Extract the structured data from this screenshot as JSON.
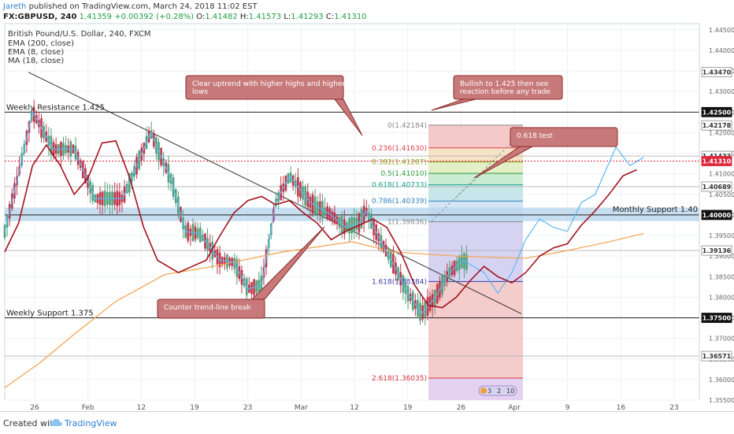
{
  "header": {
    "author": "Jareth",
    "published_text": "published on TradingView.com, March 24, 2018 11:02 EST",
    "symbol": "FX:GBPUSD, 240",
    "last": "1.41359",
    "change": "+0.00392 (+0.28%)",
    "o_label": "O:",
    "o_value": "1.41482",
    "h_label": "H:",
    "h_value": "1.41573",
    "l_label": "L:",
    "l_value": "1.41293",
    "c_label": "C:",
    "c_value": "1.41310"
  },
  "legend": {
    "instrument": "British Pound/U.S. Dollar, 240, FXCM",
    "ind1": "EMA (200, close)",
    "ind2": "EMA (8, close)",
    "ind3": "MA (18, close)"
  },
  "footer": {
    "created_with": "Created with",
    "brand": "TradingView"
  },
  "chart_data": {
    "type": "candlestick",
    "symbol": "GBPUSD",
    "timeframe": "240",
    "ylim": [
      1.355,
      1.4465
    ],
    "y_ticks": [
      1.445,
      1.44,
      1.435,
      1.43,
      1.425,
      1.42,
      1.415,
      1.41,
      1.405,
      1.4,
      1.395,
      1.39,
      1.385,
      1.38,
      1.375,
      1.37,
      1.365,
      1.36,
      1.355
    ],
    "x_ticks": [
      "26",
      "Feb",
      "12",
      "19",
      "23",
      "Mar",
      "12",
      "19",
      "26",
      "Apr",
      "9",
      "16",
      "23"
    ],
    "price_badges": [
      {
        "value": "1.43470",
        "price": 1.4347,
        "bg": "#ffffff",
        "fg": "#333333"
      },
      {
        "value": "1.42500",
        "price": 1.425,
        "bg": "#111111",
        "fg": "#ffffff"
      },
      {
        "value": "1.42178",
        "price": 1.42178,
        "bg": "#ffffff",
        "fg": "#333333"
      },
      {
        "value": "1.41433",
        "price": 1.41433,
        "bg": "#ffffff",
        "fg": "#333333"
      },
      {
        "value": "1.41310",
        "price": 1.4131,
        "bg": "#e0263a",
        "fg": "#ffffff"
      },
      {
        "value": "1.40689",
        "price": 1.40689,
        "bg": "#ffffff",
        "fg": "#333333"
      },
      {
        "value": "1.40000",
        "price": 1.4,
        "bg": "#111111",
        "fg": "#ffffff"
      },
      {
        "value": "1.39136",
        "price": 1.39136,
        "bg": "#ffffff",
        "fg": "#333333"
      },
      {
        "value": "1.37500",
        "price": 1.375,
        "bg": "#111111",
        "fg": "#ffffff"
      },
      {
        "value": "1.36571",
        "price": 1.36571,
        "bg": "#ffffff",
        "fg": "#333333"
      }
    ],
    "levels": [
      {
        "label": "Weekly Resistance 1.425",
        "price": 1.425
      },
      {
        "label": "Monthly Support 1.40",
        "price": 1.4
      },
      {
        "label": "Weekly Support 1.375",
        "price": 1.375
      }
    ],
    "fib_levels": [
      {
        "label": "0(1.42184)",
        "price": 1.42184,
        "color": "#888888"
      },
      {
        "label": "0.236(1.41630)",
        "price": 1.4163,
        "color": "#e0444e"
      },
      {
        "label": "0.382(1.41287)",
        "price": 1.41287,
        "color": "#8aa620"
      },
      {
        "label": "0.5(1.41010)",
        "price": 1.4101,
        "color": "#2e9d3c"
      },
      {
        "label": "0.618(1.40733)",
        "price": 1.40733,
        "color": "#16a38a"
      },
      {
        "label": "0.786(1.40339)",
        "price": 1.40339,
        "color": "#2f80c2"
      },
      {
        "label": "1(1.39836)",
        "price": 1.39836,
        "color": "#888888"
      },
      {
        "label": "1.618(1.38384)",
        "price": 1.38384,
        "color": "#3a3aa8"
      },
      {
        "label": "2.618(1.36035)",
        "price": 1.36035,
        "color": "#d8333d"
      }
    ],
    "annotations": [
      "Clear uptrend with higher highs and higher lows",
      "Bullish to 1.425 then see reaction before any trade",
      "0.618 test",
      "Counter trend-line break"
    ],
    "series": [
      {
        "name": "EMA (200, close)",
        "color": "#f5a04a",
        "points": [
          [
            0,
            1.358
          ],
          [
            0.05,
            1.364
          ],
          [
            0.1,
            1.371
          ],
          [
            0.16,
            1.379
          ],
          [
            0.23,
            1.3855
          ],
          [
            0.3,
            1.3875
          ],
          [
            0.4,
            1.391
          ],
          [
            0.5,
            1.3935
          ],
          [
            0.56,
            1.391
          ],
          [
            0.65,
            1.39
          ],
          [
            0.75,
            1.3895
          ],
          [
            0.8,
            1.391
          ],
          [
            0.87,
            1.3935
          ],
          [
            0.92,
            1.3955
          ]
        ]
      },
      {
        "name": "EMA (8, close)",
        "color": "#5bb8f5",
        "points": [
          [
            0,
            1.396
          ],
          [
            0.02,
            1.41
          ],
          [
            0.04,
            1.425
          ],
          [
            0.07,
            1.416
          ],
          [
            0.1,
            1.416
          ],
          [
            0.13,
            1.404
          ],
          [
            0.17,
            1.404
          ],
          [
            0.21,
            1.42
          ],
          [
            0.24,
            1.4085
          ],
          [
            0.26,
            1.396
          ],
          [
            0.28,
            1.3955
          ],
          [
            0.31,
            1.389
          ],
          [
            0.33,
            1.3885
          ],
          [
            0.35,
            1.382
          ],
          [
            0.37,
            1.383
          ],
          [
            0.39,
            1.403
          ],
          [
            0.41,
            1.4095
          ],
          [
            0.44,
            1.403
          ],
          [
            0.47,
            1.4
          ],
          [
            0.49,
            1.397
          ],
          [
            0.51,
            1.398
          ],
          [
            0.52,
            1.401
          ],
          [
            0.54,
            1.394
          ],
          [
            0.56,
            1.388
          ],
          [
            0.58,
            1.381
          ],
          [
            0.6,
            1.376
          ],
          [
            0.62,
            1.38
          ],
          [
            0.64,
            1.386
          ],
          [
            0.66,
            1.389
          ],
          [
            0.69,
            1.386
          ],
          [
            0.71,
            1.381
          ],
          [
            0.73,
            1.386
          ],
          [
            0.75,
            1.394
          ],
          [
            0.77,
            1.399
          ],
          [
            0.79,
            1.397
          ],
          [
            0.81,
            1.396
          ],
          [
            0.83,
            1.403
          ],
          [
            0.85,
            1.405
          ],
          [
            0.88,
            1.4165
          ],
          [
            0.9,
            1.412
          ],
          [
            0.92,
            1.414
          ]
        ]
      },
      {
        "name": "MA (18, close)",
        "color": "#a3121d",
        "points": [
          [
            0,
            1.391
          ],
          [
            0.02,
            1.398
          ],
          [
            0.04,
            1.412
          ],
          [
            0.06,
            1.417
          ],
          [
            0.08,
            1.412
          ],
          [
            0.1,
            1.405
          ],
          [
            0.12,
            1.409
          ],
          [
            0.14,
            1.4175
          ],
          [
            0.16,
            1.418
          ],
          [
            0.18,
            1.409
          ],
          [
            0.2,
            1.397
          ],
          [
            0.22,
            1.389
          ],
          [
            0.25,
            1.386
          ],
          [
            0.27,
            1.3875
          ],
          [
            0.29,
            1.389
          ],
          [
            0.31,
            1.395
          ],
          [
            0.33,
            1.4005
          ],
          [
            0.35,
            1.4035
          ],
          [
            0.37,
            1.4045
          ],
          [
            0.39,
            1.4025
          ],
          [
            0.41,
            1.4035
          ],
          [
            0.43,
            1.4005
          ],
          [
            0.45,
            1.398
          ],
          [
            0.47,
            1.394
          ],
          [
            0.49,
            1.396
          ],
          [
            0.51,
            1.3975
          ],
          [
            0.53,
            1.399
          ],
          [
            0.55,
            1.397
          ],
          [
            0.57,
            1.391
          ],
          [
            0.59,
            1.383
          ],
          [
            0.61,
            1.378
          ],
          [
            0.63,
            1.3775
          ],
          [
            0.65,
            1.38
          ],
          [
            0.67,
            1.384
          ],
          [
            0.69,
            1.3875
          ],
          [
            0.71,
            1.385
          ],
          [
            0.73,
            1.3835
          ],
          [
            0.75,
            1.386
          ],
          [
            0.77,
            1.39
          ],
          [
            0.79,
            1.392
          ],
          [
            0.81,
            1.393
          ],
          [
            0.83,
            1.3975
          ],
          [
            0.85,
            1.401
          ],
          [
            0.87,
            1.405
          ],
          [
            0.89,
            1.4095
          ],
          [
            0.91,
            1.411
          ]
        ]
      }
    ]
  }
}
